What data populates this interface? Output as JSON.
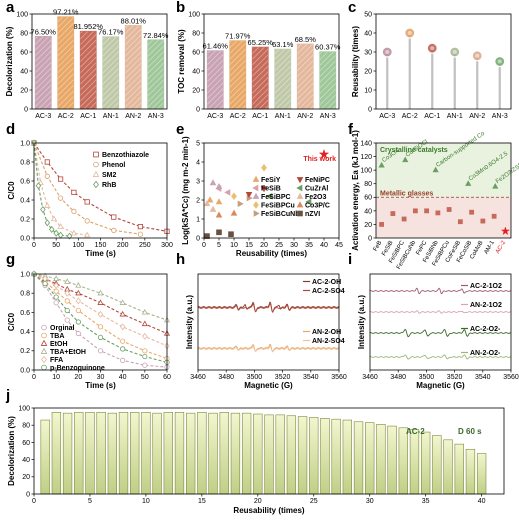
{
  "chart_data": [
    {
      "panel": "a",
      "type": "bar",
      "ylabel": "Decolorization (%)",
      "categories": [
        "AC-3",
        "AC-2",
        "AC-1",
        "AN-1",
        "AN-2",
        "AN-3"
      ],
      "values": [
        76.5,
        97.21,
        81.952,
        76.17,
        88.01,
        72.84
      ],
      "value_labels": [
        "76.50%",
        "97.21%",
        "81.952%",
        "76.17%",
        "88.01%",
        "72.84%"
      ],
      "ylim": [
        0,
        100
      ],
      "yticks": [
        0,
        20,
        40,
        60,
        80,
        100
      ],
      "colors": [
        "#c9a3b3",
        "#e8a868",
        "#c66a5a",
        "#bfc9a8",
        "#e4b89c",
        "#9fc79a"
      ]
    },
    {
      "panel": "b",
      "type": "bar",
      "ylabel": "TOC removal (%)",
      "categories": [
        "AC-3",
        "AC-2",
        "AC-1",
        "AN-1",
        "AN-2",
        "AN-3"
      ],
      "values": [
        61.46,
        71.97,
        65.25,
        63.1,
        68.5,
        60.37
      ],
      "value_labels": [
        "61.46%",
        "71.97%",
        "65.25%",
        "63.1%",
        "68.5%",
        "60.37%"
      ],
      "ylim": [
        0,
        100
      ],
      "yticks": [
        0,
        20,
        40,
        60,
        80,
        100
      ],
      "colors": [
        "#c9a3b3",
        "#e8a868",
        "#c66a5a",
        "#bfc9a8",
        "#e4b89c",
        "#9fc79a"
      ]
    },
    {
      "panel": "c",
      "type": "lollipop",
      "ylabel": "Reusability (times)",
      "categories": [
        "AC-3",
        "AC-2",
        "AC-1",
        "AN-1",
        "AN-2",
        "AN-3"
      ],
      "values": [
        30,
        40,
        32,
        30,
        28,
        25
      ],
      "ylim": [
        0,
        50
      ],
      "yticks": [
        0,
        10,
        20,
        30,
        40,
        50
      ],
      "colors": [
        "#b98a9e",
        "#e0a060",
        "#b85a4c",
        "#a7b48f",
        "#d9a48a",
        "#6fa86a"
      ]
    },
    {
      "panel": "d",
      "type": "line",
      "xlabel": "Time (s)",
      "ylabel": "C/C0",
      "xlim": [
        0,
        300
      ],
      "ylim": [
        0,
        1.0
      ],
      "xticks": [
        0,
        50,
        100,
        150,
        200,
        250,
        300
      ],
      "yticks": [
        0,
        0.2,
        0.4,
        0.6,
        0.8,
        1.0
      ],
      "series": [
        {
          "name": "Benzothiazole",
          "color": "#b5473a",
          "marker": "square",
          "x": [
            0,
            30,
            60,
            90,
            120,
            180,
            240,
            300
          ],
          "y": [
            1.0,
            0.8,
            0.62,
            0.48,
            0.38,
            0.22,
            0.12,
            0.07
          ]
        },
        {
          "name": "Phenol",
          "color": "#dba06a",
          "marker": "circle",
          "x": [
            0,
            30,
            60,
            90,
            120,
            180,
            240
          ],
          "y": [
            1.0,
            0.65,
            0.42,
            0.28,
            0.18,
            0.08,
            0.04
          ]
        },
        {
          "name": "SM2",
          "color": "#e5b9a1",
          "marker": "triangle",
          "x": [
            0,
            15,
            30,
            45,
            60,
            90,
            120
          ],
          "y": [
            1.0,
            0.58,
            0.34,
            0.2,
            0.12,
            0.05,
            0.03
          ]
        },
        {
          "name": "RhB",
          "color": "#6a9e62",
          "marker": "diamond",
          "x": [
            0,
            10,
            20,
            30,
            40,
            50,
            60,
            80
          ],
          "y": [
            1.0,
            0.55,
            0.3,
            0.16,
            0.09,
            0.05,
            0.03,
            0.02
          ]
        }
      ]
    },
    {
      "panel": "e",
      "type": "scatter",
      "xlabel": "Reusability (times)",
      "ylabel": "Log(kSA*Cc) (mg m-2 min-1)",
      "xlim": [
        0,
        45
      ],
      "ylim": [
        0,
        5
      ],
      "xticks": [
        0,
        5,
        10,
        15,
        20,
        25,
        30,
        35,
        40,
        45
      ],
      "yticks": [
        0,
        1,
        2,
        3,
        4,
        5
      ],
      "series": [
        {
          "name": "FeSiY",
          "color": "#e8a868",
          "marker": "triangle",
          "points": [
            [
              2,
              2.0
            ],
            [
              5,
              1.9
            ]
          ]
        },
        {
          "name": "FeSiB",
          "color": "#d9a0a8",
          "marker": "triangle-left",
          "points": [
            [
              5,
              2.6
            ],
            [
              8,
              2.4
            ]
          ]
        },
        {
          "name": "FeSiBPC",
          "color": "#c9a3b3",
          "marker": "triangle",
          "points": [
            [
              3,
              2.9
            ],
            [
              5,
              2.7
            ]
          ]
        },
        {
          "name": "FeSiBPCu",
          "color": "#e8c070",
          "marker": "diamond",
          "points": [
            [
              20,
              3.7
            ],
            [
              10,
              2.2
            ]
          ]
        },
        {
          "name": "FeSiBCuNb",
          "color": "#c4a07a",
          "marker": "triangle-right",
          "points": [
            [
              12,
              1.8
            ],
            [
              15,
              2.1
            ]
          ]
        },
        {
          "name": "FeNiPC",
          "color": "#b5473a",
          "marker": "triangle-down",
          "points": [
            [
              15,
              2.3
            ],
            [
              20,
              2.6
            ]
          ]
        },
        {
          "name": "CuZrAl",
          "color": "#6a9e62",
          "marker": "triangle-left",
          "points": [
            [
              22,
              2.2
            ],
            [
              35,
              1.9
            ]
          ]
        },
        {
          "name": "Fe2O3",
          "color": "#e5b9a1",
          "marker": "triangle",
          "points": [
            [
              1,
              1.8
            ],
            [
              3,
              1.5
            ]
          ]
        },
        {
          "name": "Co3P/C",
          "color": "#d98a5a",
          "marker": "triangle",
          "points": [
            [
              5,
              1.2
            ],
            [
              10,
              1.3
            ]
          ]
        },
        {
          "name": "nZVI",
          "color": "#6a5040",
          "marker": "square",
          "points": [
            [
              1,
              0.1
            ],
            [
              5,
              0.3
            ],
            [
              9,
              0.2
            ]
          ]
        },
        {
          "name": "This work",
          "color": "#e02020",
          "marker": "star",
          "points": [
            [
              40,
              4.4
            ]
          ]
        }
      ],
      "annotations": [
        "This work"
      ]
    },
    {
      "panel": "f",
      "type": "bar",
      "ylabel": "Activation energy, Ea (kJ mol-1)",
      "ylim": [
        0,
        140
      ],
      "yticks": [
        0,
        20,
        40,
        60,
        80,
        100,
        120,
        140
      ],
      "categories": [
        "FeB",
        "FeSiB",
        "FeSiBPC",
        "FeSiBCuNb",
        "FePC",
        "FeSiBNb",
        "FeSiBPCu",
        "CoFeSiB",
        "FeCoSiB",
        "CoMoB",
        "AM-1",
        "AC-2"
      ],
      "values": [
        20,
        36,
        28,
        40,
        40,
        37,
        42,
        24,
        38,
        25,
        32,
        10
      ],
      "reference": {
        "label_crystalline": "Crystalline catalysts",
        "label_metallic": "Metallic glasses",
        "threshold": 60
      },
      "crystalline": [
        {
          "name": "Co3O4",
          "value": 107
        },
        {
          "name": "Cu-BiOCl",
          "value": 115
        },
        {
          "name": "Carbon-supported Co",
          "value": 100
        },
        {
          "name": "Co3Mn0.6O4-2.5",
          "value": 80
        },
        {
          "name": "Fe2O3/ZSM-5",
          "value": 76
        }
      ]
    },
    {
      "panel": "g",
      "type": "line",
      "xlabel": "Time (s)",
      "ylabel": "C/C0",
      "xlim": [
        0,
        60
      ],
      "ylim": [
        0,
        1.0
      ],
      "xticks": [
        0,
        10,
        20,
        30,
        40,
        50,
        60
      ],
      "yticks": [
        0,
        0.2,
        0.4,
        0.6,
        0.8,
        1.0
      ],
      "series": [
        {
          "name": "Orginal",
          "color": "#c9a3b3",
          "marker": "circle",
          "x": [
            0,
            5,
            10,
            15,
            20,
            30,
            40,
            50,
            60
          ],
          "y": [
            1.0,
            0.88,
            0.7,
            0.52,
            0.38,
            0.2,
            0.1,
            0.05,
            0.03
          ]
        },
        {
          "name": "TBA",
          "color": "#e8a868",
          "marker": "circle",
          "x": [
            0,
            5,
            10,
            15,
            20,
            30,
            40,
            50,
            60
          ],
          "y": [
            1.0,
            0.92,
            0.82,
            0.72,
            0.62,
            0.45,
            0.3,
            0.2,
            0.12
          ]
        },
        {
          "name": "EtOH",
          "color": "#b5473a",
          "marker": "triangle",
          "x": [
            0,
            5,
            10,
            15,
            20,
            30,
            40,
            50,
            60
          ],
          "y": [
            1.0,
            0.95,
            0.9,
            0.84,
            0.8,
            0.7,
            0.58,
            0.48,
            0.38
          ]
        },
        {
          "name": "TBA+EtOH",
          "color": "#a7b48f",
          "marker": "triangle",
          "x": [
            0,
            5,
            10,
            15,
            20,
            30,
            40,
            50,
            60
          ],
          "y": [
            1.0,
            0.98,
            0.95,
            0.92,
            0.88,
            0.8,
            0.7,
            0.6,
            0.52
          ]
        },
        {
          "name": "FFA",
          "color": "#e5b9a1",
          "marker": "diamond",
          "x": [
            0,
            5,
            10,
            15,
            20,
            30,
            40,
            50,
            60
          ],
          "y": [
            1.0,
            0.95,
            0.88,
            0.8,
            0.72,
            0.58,
            0.45,
            0.35,
            0.25
          ]
        },
        {
          "name": "p-Benzoquinone",
          "color": "#6a9e62",
          "marker": "circle",
          "x": [
            0,
            5,
            10,
            15,
            20,
            30,
            40,
            50,
            60
          ],
          "y": [
            1.0,
            0.9,
            0.76,
            0.62,
            0.5,
            0.34,
            0.22,
            0.14,
            0.08
          ]
        }
      ]
    },
    {
      "panel": "h",
      "type": "spectrum",
      "xlabel": "Magnetic (G)",
      "ylabel": "Intensity (a.u.)",
      "xlim": [
        3460,
        3560
      ],
      "xticks": [
        3460,
        3480,
        3500,
        3520,
        3540,
        3560
      ],
      "series": [
        {
          "name": "AC-2-OH",
          "color": "#8a3a2a"
        },
        {
          "name": "AC-2-SO4",
          "color": "#b5473a"
        },
        {
          "name": "AN-2-OH",
          "color": "#e8a868"
        },
        {
          "name": "AN-2-SO4",
          "color": "#f0c098"
        }
      ]
    },
    {
      "panel": "i",
      "type": "spectrum",
      "xlabel": "Magnetic (G)",
      "ylabel": "Intensity (a.u.)",
      "xlim": [
        3460,
        3560
      ],
      "xticks": [
        3460,
        3480,
        3500,
        3520,
        3540,
        3560
      ],
      "series": [
        {
          "name": "AC-2-1O2",
          "color": "#a05a70"
        },
        {
          "name": "AN-2-1O2",
          "color": "#d9a0b8"
        },
        {
          "name": "AC-2-O2-",
          "color": "#3a6a2a"
        },
        {
          "name": "AN-2-O2-",
          "color": "#9ab87a"
        }
      ]
    },
    {
      "panel": "j",
      "type": "bar",
      "xlabel": "Reusability (times)",
      "ylabel": "Decolorization (%)",
      "xlim": [
        0,
        42
      ],
      "ylim": [
        0,
        100
      ],
      "xticks": [
        0,
        5,
        10,
        15,
        20,
        25,
        30,
        35,
        40
      ],
      "yticks": [
        0,
        20,
        40,
        60,
        80,
        100
      ],
      "annotation_sample": "AC-2",
      "annotation_time": "D 60 s",
      "x": [
        1,
        2,
        3,
        4,
        5,
        6,
        7,
        8,
        9,
        10,
        11,
        12,
        13,
        14,
        15,
        16,
        17,
        18,
        19,
        20,
        21,
        22,
        23,
        24,
        25,
        26,
        27,
        28,
        29,
        30,
        31,
        32,
        33,
        34,
        35,
        36,
        37,
        38,
        39,
        40
      ],
      "values": [
        86,
        95,
        94,
        95,
        95,
        95,
        94,
        95,
        95,
        95,
        94,
        95,
        95,
        94,
        95,
        94,
        95,
        94,
        94,
        93,
        92,
        92,
        91,
        90,
        89,
        88,
        87,
        86,
        84,
        83,
        81,
        79,
        77,
        75,
        72,
        68,
        63,
        58,
        52,
        47
      ]
    }
  ],
  "labels": {
    "a": "a",
    "b": "b",
    "c": "c",
    "d": "d",
    "e": "e",
    "f": "f",
    "g": "g",
    "h": "h",
    "i": "i",
    "j": "j"
  },
  "texts": {
    "this_work": "This work",
    "crystalline_catalysts": "Crystalline catalysts",
    "metallic_glasses": "Metallic glasses",
    "ac2": "AC-2",
    "d60": "D 60 s"
  },
  "colors": {
    "bar_fill_j": "#d9e3a4",
    "bar_stroke_j": "#7f8a3a",
    "axis": "#000000",
    "star": "#e02020"
  }
}
